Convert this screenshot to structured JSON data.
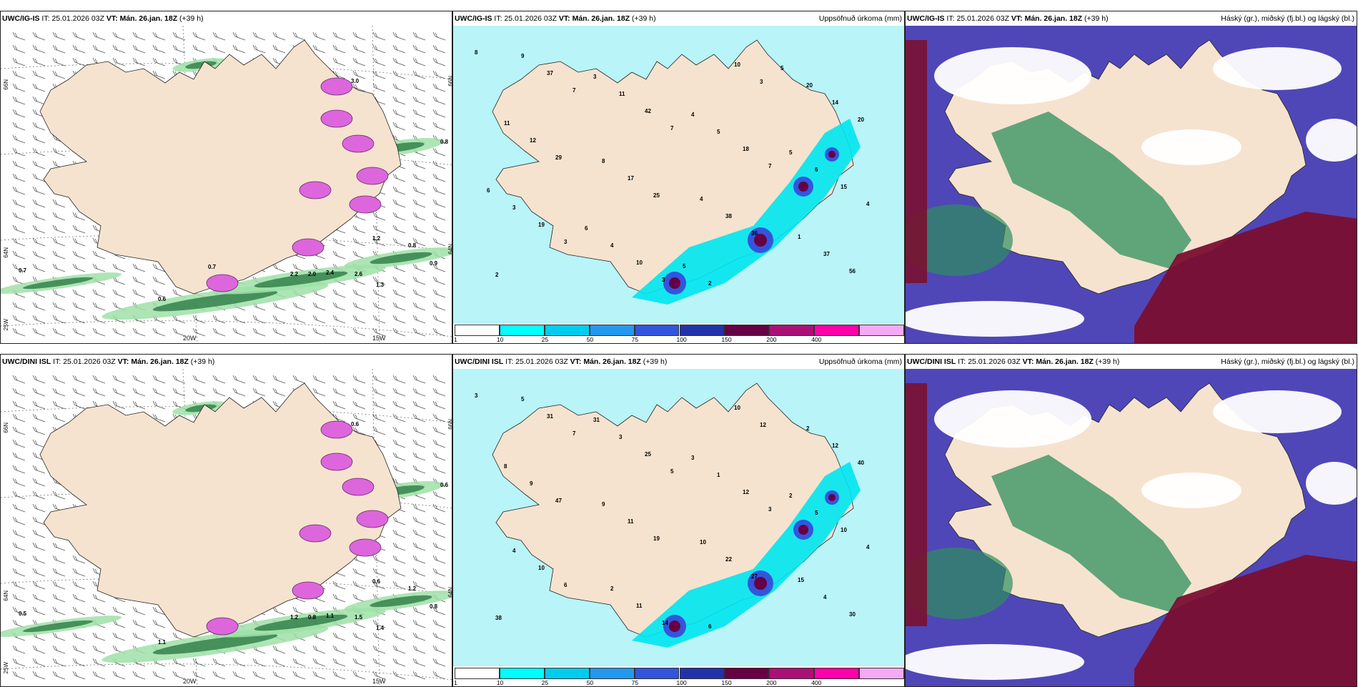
{
  "panels": [
    {
      "model": "UWC/IG-IS",
      "it_label": "IT:",
      "it_value": "25.01.2026 03Z",
      "vt_label": "VT:",
      "vt_value": "Mán. 26.jan. 18Z",
      "lead": "(+39 h)",
      "variable": "",
      "lat_labels": [
        "66N",
        "64N",
        "25W",
        "66N",
        "64N"
      ],
      "lon_labels": [
        "20W",
        "15W"
      ],
      "values": [
        "3.0",
        "0.8",
        "0.7",
        "0.6",
        "0.9",
        "2.0",
        "1.2",
        "1.3",
        "0.8",
        "2.6",
        "2.4",
        "2.2",
        "0.7"
      ]
    },
    {
      "model": "UWC/IG-IS",
      "it_label": "IT:",
      "it_value": "25.01.2026 03Z",
      "vt_label": "VT:",
      "vt_value": "Mán. 26.jan. 18Z",
      "lead": "(+39 h)",
      "variable": "Uppsöfnuð úrkoma (mm)",
      "values": [
        "8",
        "7",
        "7",
        "7",
        "4",
        "3",
        "3",
        "3",
        "20",
        "29",
        "25",
        "36",
        "56",
        "37",
        "42",
        "18",
        "15",
        "19",
        "10",
        "10",
        "14",
        "12",
        "17",
        "38",
        "37",
        "9",
        "11",
        "5",
        "6",
        "3",
        "4",
        "2",
        "20",
        "11",
        "8",
        "4",
        "1",
        "2",
        "3",
        "4",
        "5",
        "6",
        "6",
        "5",
        "5"
      ]
    },
    {
      "model": "UWC/IG-IS",
      "it_label": "IT:",
      "it_value": "25.01.2026 03Z",
      "vt_label": "VT:",
      "vt_value": "Mán. 26.jan. 18Z",
      "lead": "(+39 h)",
      "variable": "Háský (gr.), miðský (fj.bl.) og lágský (bl.)"
    },
    {
      "model": "UWC/DINI ISL",
      "it_label": "IT:",
      "it_value": "25.01.2026 03Z",
      "vt_label": "VT:",
      "vt_value": "Mán. 26.jan. 18Z",
      "lead": "(+39 h)",
      "variable": "",
      "lat_labels": [
        "66N",
        "64N",
        "25W",
        "66N",
        "64N"
      ],
      "lon_labels": [
        "20W",
        "15W"
      ],
      "values": [
        "0.6",
        "0.6",
        "0.5",
        "1.1",
        "0.8",
        "0.8",
        "0.6",
        "1.4",
        "1.2",
        "1.5",
        "1.1",
        "1.2"
      ]
    },
    {
      "model": "UWC/DINI ISL",
      "it_label": "IT:",
      "it_value": "25.01.2026 03Z",
      "vt_label": "VT:",
      "vt_value": "Mán. 26.jan. 18Z",
      "lead": "(+39 h)",
      "variable": "Uppsöfnuð úrkoma (mm)",
      "values": [
        "3",
        "7",
        "5",
        "3",
        "4",
        "6",
        "14",
        "12",
        "40",
        "47",
        "19",
        "27",
        "30",
        "31",
        "25",
        "12",
        "10",
        "10",
        "11",
        "10",
        "12",
        "9",
        "11",
        "22",
        "4",
        "5",
        "3",
        "1",
        "5",
        "4",
        "2",
        "6",
        "2",
        "8",
        "9",
        "10",
        "15",
        "38",
        "31",
        "3",
        "2"
      ]
    },
    {
      "model": "UWC/DINI ISL",
      "it_label": "IT:",
      "it_value": "25.01.2026 03Z",
      "vt_label": "VT:",
      "vt_value": "Mán. 26.jan. 18Z",
      "lead": "(+39 h)",
      "variable": "Háský (gr.), miðský (fj.bl.) og lágský (bl.)"
    }
  ],
  "colorbar": {
    "ticks": [
      "1",
      "10",
      "25",
      "50",
      "75",
      "100",
      "150",
      "200",
      "400"
    ],
    "colors": [
      "#ffffff",
      "#00ffff",
      "#00ccee",
      "#2299ee",
      "#3355dd",
      "#2233aa",
      "#660044",
      "#aa1177",
      "#ff00aa",
      "#f4aaf4"
    ]
  },
  "colors": {
    "land": "#f5e3cf",
    "sea_precip": "#b8f4f8",
    "cloud_high": "#2e8f5e",
    "cloud_mid": "#4f47b7",
    "cloud_low": "#7a0f30"
  }
}
